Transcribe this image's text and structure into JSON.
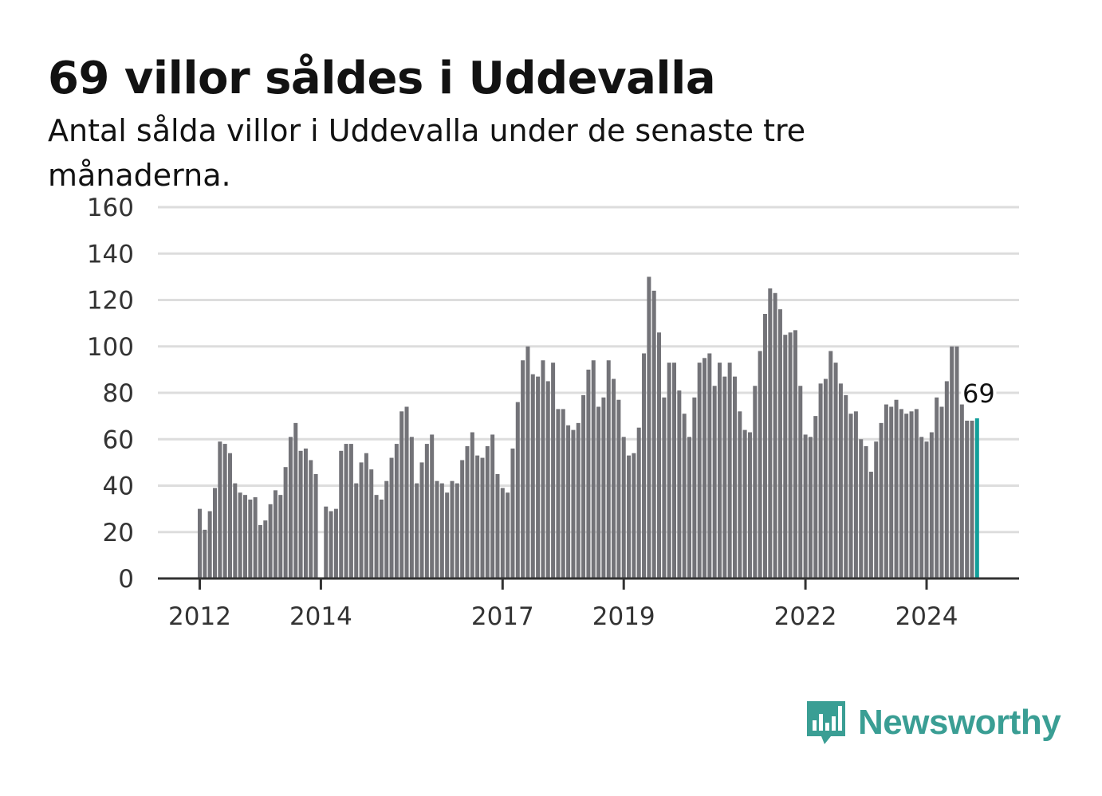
{
  "title": "69 villor såldes i Uddevalla",
  "subtitle": "Antal sålda villor i Uddevalla under de senaste tre månaderna.",
  "brand": {
    "name": "Newsworthy",
    "icon": "newsworthy-chart-icon",
    "color": "#3a9e94"
  },
  "colors": {
    "bar": "#737378",
    "highlight": "#129f9a",
    "grid": "#dddddd",
    "axis": "#333333"
  },
  "chart_data": {
    "type": "bar",
    "title": "69 villor såldes i Uddevalla",
    "xlabel": "",
    "ylabel": "",
    "ylim": [
      0,
      160
    ],
    "yticks": [
      "0",
      "20",
      "40",
      "60",
      "80",
      "100",
      "120",
      "140",
      "160"
    ],
    "xticks": [
      "2012",
      "2014",
      "2017",
      "2019",
      "2022",
      "2024"
    ],
    "grid": true,
    "highlight_label": "69",
    "series": [
      {
        "start": "2012-01",
        "values": [
          30,
          21,
          29,
          39,
          59,
          58,
          54,
          41,
          37,
          36,
          34,
          35,
          23,
          25,
          32,
          38,
          36,
          48,
          61,
          67,
          55,
          56,
          51,
          45,
          null,
          31,
          29,
          30,
          55,
          58,
          58,
          41,
          50,
          54,
          47,
          36,
          34,
          42,
          52,
          58,
          72,
          74,
          61,
          41,
          50,
          58,
          62,
          42,
          41,
          37,
          42,
          41,
          51,
          57,
          63,
          53,
          52,
          57,
          62,
          45,
          39,
          37,
          56,
          76,
          94,
          100,
          88,
          87,
          94,
          85,
          93,
          73,
          73,
          66,
          64,
          67,
          79,
          90,
          94,
          74,
          78,
          94,
          86,
          77,
          61,
          53,
          54,
          65,
          97,
          130,
          124,
          106,
          78,
          93,
          93,
          81,
          71,
          61,
          78,
          93,
          95,
          97,
          83,
          93,
          87,
          93,
          87,
          72,
          64,
          63,
          83,
          98,
          114,
          125,
          123,
          116,
          105,
          106,
          107,
          83,
          62,
          61,
          70,
          84,
          86,
          98,
          93,
          84,
          79,
          71,
          72,
          60,
          57,
          46,
          59,
          67,
          75,
          74,
          77,
          73,
          71,
          72,
          73,
          61,
          59,
          63,
          78,
          74,
          85,
          100,
          100,
          75,
          68,
          68,
          69
        ]
      }
    ]
  }
}
